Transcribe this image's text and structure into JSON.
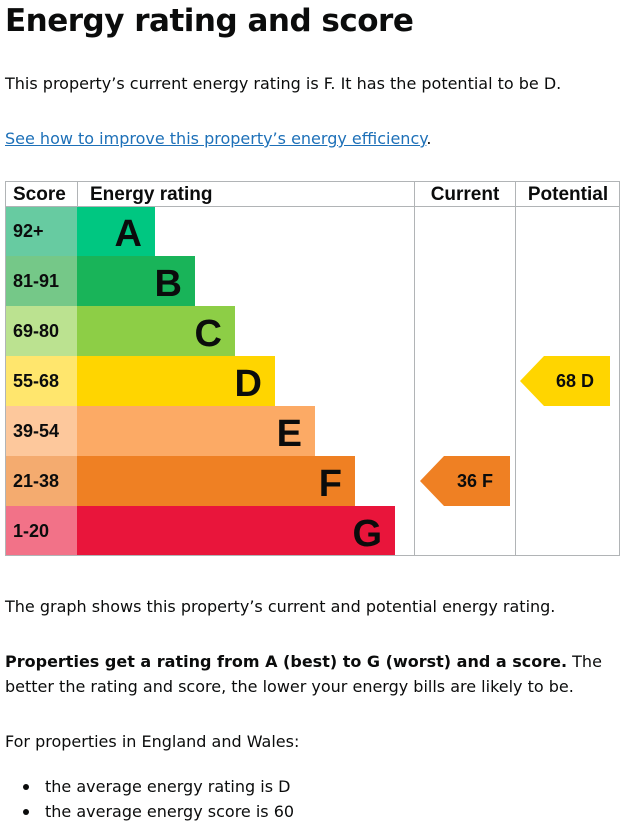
{
  "heading": "Energy rating and score",
  "intro": "This property’s current energy rating is F. It has the potential to be D.",
  "improve_link": "See how to improve this property’s energy efficiency",
  "improve_link_suffix": ".",
  "graph": {
    "headers": {
      "score": "Score",
      "rating": "Energy rating",
      "current": "Current",
      "potential": "Potential"
    },
    "bands": [
      {
        "score": "92+",
        "letter": "A",
        "color": "#00c781",
        "light": "#67cba1"
      },
      {
        "score": "81-91",
        "letter": "B",
        "color": "#19b459",
        "light": "#75c888"
      },
      {
        "score": "69-80",
        "letter": "C",
        "color": "#8dce46",
        "light": "#bbe290"
      },
      {
        "score": "55-68",
        "letter": "D",
        "color": "#ffd500",
        "light": "#ffe66d"
      },
      {
        "score": "39-54",
        "letter": "E",
        "color": "#fcaa65",
        "light": "#fdc89c"
      },
      {
        "score": "21-38",
        "letter": "F",
        "color": "#ef8023",
        "light": "#f4ab6f"
      },
      {
        "score": "1-20",
        "letter": "G",
        "color": "#e9153b",
        "light": "#f27288"
      }
    ],
    "current": {
      "score": "36",
      "letter": "F",
      "band": 5
    },
    "potential": {
      "score": "68",
      "letter": "D",
      "band": 3
    }
  },
  "graph_caption": "The graph shows this property’s current and potential energy rating.",
  "rating_explain_bold": "Properties get a rating from A (best) to G (worst) and a score.",
  "rating_explain_rest": " The better the rating and score, the lower your energy bills are likely to be.",
  "averages_intro": "For properties in England and Wales:",
  "averages": [
    "the average energy rating is D",
    "the average energy score is 60"
  ]
}
